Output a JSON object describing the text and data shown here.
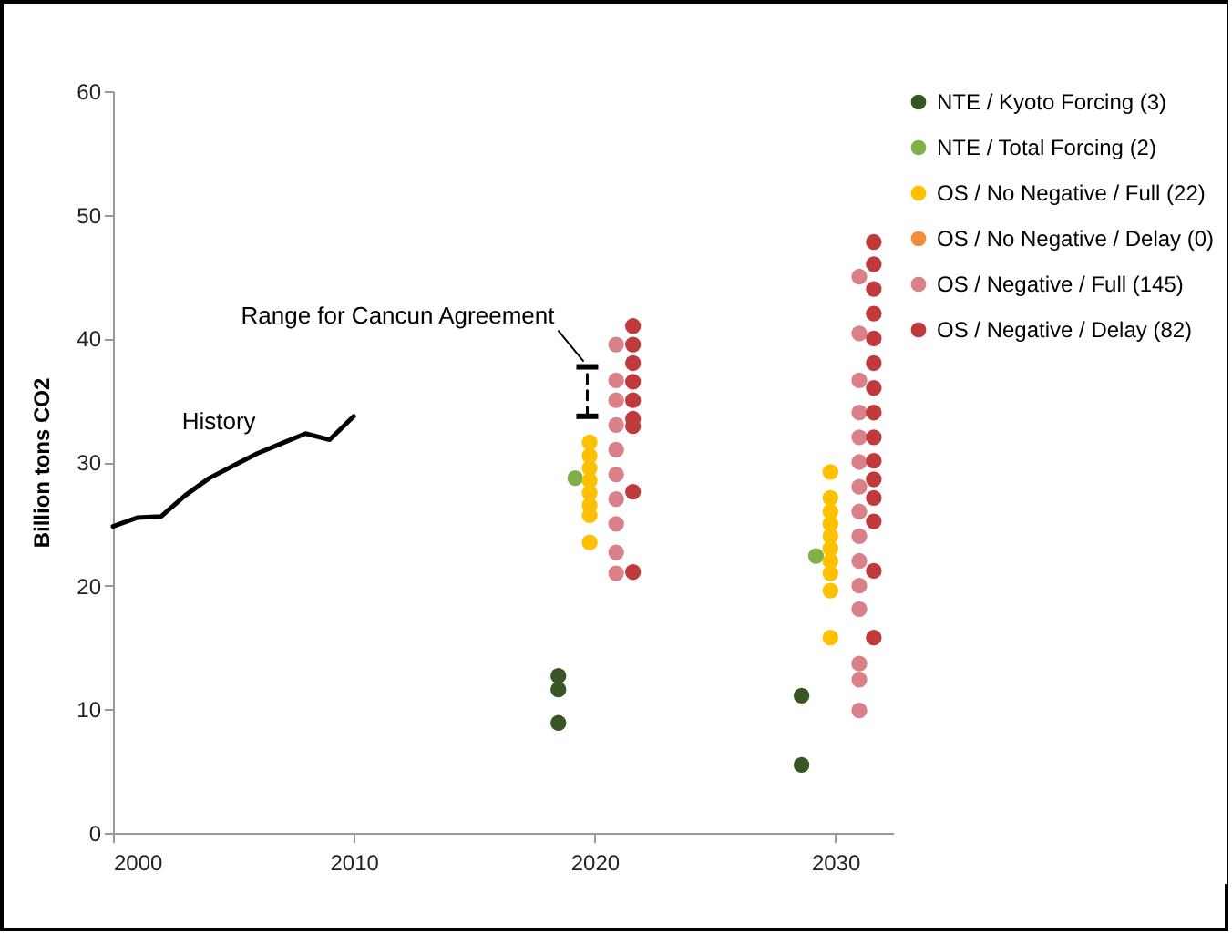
{
  "chart_data": {
    "type": "scatter",
    "ylabel": "Billion tons CO2",
    "xlim": [
      2000,
      2032.4
    ],
    "xticks": [
      2000,
      2010,
      2020,
      2030
    ],
    "ylim": [
      0,
      60
    ],
    "yticks": [
      0,
      10,
      20,
      30,
      40,
      50,
      60
    ],
    "grid": false,
    "legend": "right",
    "marker": "circle",
    "annotations": [
      {
        "text": "Range for Cancun Agreement",
        "x": 2019.7,
        "y": 37.7
      }
    ],
    "series": [
      {
        "name": "History",
        "type": "line",
        "marker": "none",
        "color": "#000000",
        "x": [
          2000,
          2001,
          2002,
          2003,
          2004,
          2005,
          2006,
          2007,
          2008,
          2009,
          2010
        ],
        "values": [
          24.8,
          25.5,
          25.6,
          27.3,
          28.7,
          29.7,
          30.7,
          31.5,
          32.3,
          31.8,
          33.7
        ]
      },
      {
        "type": "line",
        "marker": "none",
        "line_style": "dashed",
        "color": "#000000",
        "x": [
          2019.7,
          2019.7
        ],
        "values": [
          33.7,
          37.7
        ]
      },
      {
        "name": "NTE / Kyoto Forcing (3)",
        "color": "#375623",
        "x": [
          2018.5,
          2018.5,
          2018.5,
          2028.6,
          2028.6
        ],
        "values": [
          12.7,
          11.6,
          8.9,
          11.1,
          5.5
        ]
      },
      {
        "name": "NTE / Total Forcing (2)",
        "color": "#7fb04a",
        "x": [
          2019.2,
          2029.2
        ],
        "values": [
          28.7,
          22.4
        ]
      },
      {
        "name": "OS / No Negative / Full (22)",
        "color": "#ffc000",
        "x": [
          2019.8,
          2019.8,
          2019.8,
          2019.8,
          2019.8,
          2019.8,
          2019.8,
          2019.8,
          2029.8,
          2029.8,
          2029.8,
          2029.8,
          2029.8,
          2029.8,
          2029.8,
          2029.8,
          2029.8,
          2029.8
        ],
        "values": [
          31.6,
          30.5,
          29.5,
          28.5,
          27.5,
          26.5,
          25.7,
          23.5,
          29.2,
          27.1,
          26,
          25,
          24,
          23,
          22,
          21,
          19.6,
          15.8
        ]
      },
      {
        "name": "OS / No Negative / Delay (0)",
        "color": "#f28b3c"
      },
      {
        "name": "OS / Negative / Full (145)",
        "color": "#d98088",
        "x": [
          2020.9,
          2020.9,
          2020.9,
          2020.9,
          2020.9,
          2020.9,
          2020.9,
          2020.9,
          2020.9,
          2020.9,
          2031.0,
          2031.0,
          2031.0,
          2031.0,
          2031.0,
          2031.0,
          2031.0,
          2031.0,
          2031.0,
          2031.0,
          2031.0,
          2031.0,
          2031.0,
          2031.0,
          2031.0
        ],
        "values": [
          39.5,
          36.6,
          35,
          33,
          31,
          29,
          27,
          25,
          22.7,
          21.0,
          45.0,
          40.4,
          36.6,
          34,
          32,
          30,
          28,
          26,
          24,
          22,
          20,
          18.1,
          13.7,
          12.4,
          9.9
        ]
      },
      {
        "name": "OS / Negative / Delay (82)",
        "color": "#c0393b",
        "x": [
          2021.6,
          2021.6,
          2021.6,
          2021.6,
          2021.6,
          2021.6,
          2021.6,
          2021.6,
          2021.6,
          2031.6,
          2031.6,
          2031.6,
          2031.6,
          2031.6,
          2031.6,
          2031.6,
          2031.6,
          2031.6,
          2031.6,
          2031.6,
          2031.6,
          2031.6,
          2031.6,
          2031.6
        ],
        "values": [
          41,
          39.5,
          38,
          36.5,
          35,
          33.5,
          32.9,
          27.6,
          21.1,
          47.8,
          46,
          44,
          42,
          40,
          38,
          36,
          34,
          32,
          30.1,
          28.6,
          27.1,
          25.2,
          21.2,
          15.8
        ]
      }
    ]
  }
}
